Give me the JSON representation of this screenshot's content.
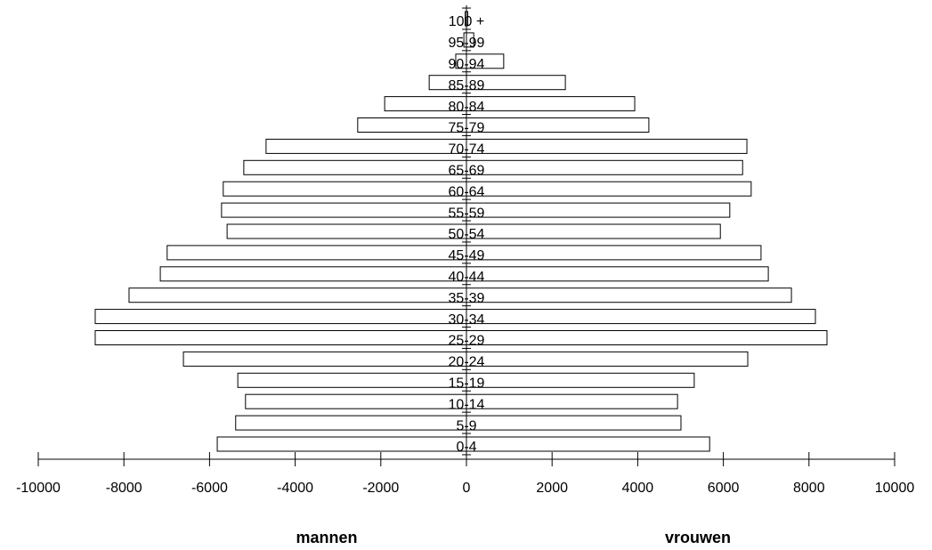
{
  "chart_data": {
    "type": "pyramid",
    "categories": [
      "0-4",
      "5-9",
      "10-14",
      "15-19",
      "20-24",
      "25-29",
      "30-34",
      "35-39",
      "40-44",
      "45-49",
      "50-54",
      "55-59",
      "60-64",
      "65-69",
      "70-74",
      "75-79",
      "80-84",
      "85-89",
      "90-94",
      "95-99",
      "100 +"
    ],
    "series": [
      {
        "name": "mannen",
        "color": "#ffffff",
        "values": [
          -5820,
          -5390,
          -5160,
          -5340,
          -6610,
          -8670,
          -8670,
          -7880,
          -7150,
          -6990,
          -5590,
          -5720,
          -5680,
          -5200,
          -4680,
          -2540,
          -1910,
          -870,
          -250,
          -60,
          -30
        ]
      },
      {
        "name": "vrouwen",
        "color": "#ffffff",
        "values": [
          5680,
          5010,
          4930,
          5320,
          6570,
          8420,
          8150,
          7590,
          7050,
          6880,
          5930,
          6150,
          6650,
          6450,
          6550,
          4260,
          3930,
          2310,
          870,
          170,
          30
        ]
      }
    ],
    "xlim": [
      -10000,
      10000
    ],
    "xticks": [
      -10000,
      -8000,
      -6000,
      -4000,
      -2000,
      0,
      2000,
      4000,
      6000,
      8000,
      10000
    ]
  }
}
